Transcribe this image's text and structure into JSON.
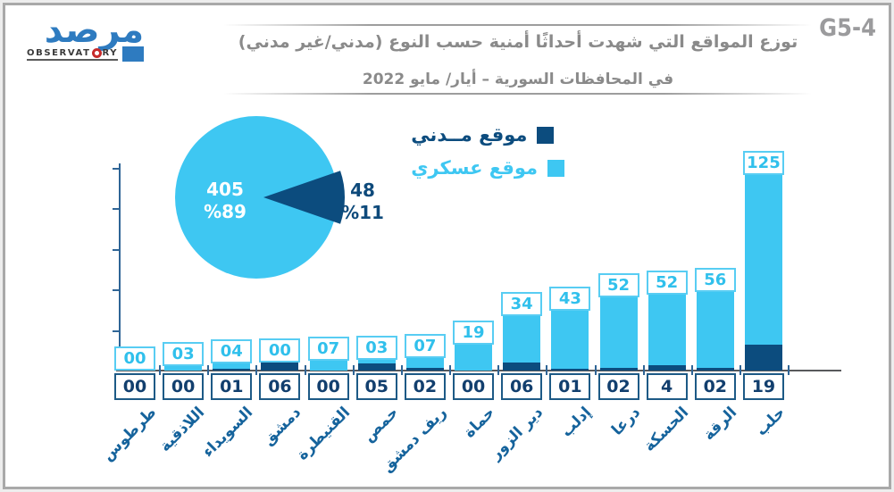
{
  "badge": "G5-4",
  "logo": {
    "arabic": "مرصد",
    "latin_left": "OBSERVAT",
    "latin_right": "RY"
  },
  "title": {
    "line1": "توزع المواقع التي شهدت أحداثًا أمنية حسب النوع (مدني/غير مدني)",
    "line2": "في المحافظات السورية – أيار/ مايو 2022"
  },
  "colors": {
    "military_light_blue": "#3EC7F2",
    "civilian_dark_blue": "#0C4C7E",
    "title_gray": "#8A8A8A",
    "category_label_blue": "#15639C"
  },
  "chart_data": [
    {
      "type": "pie",
      "labels": [
        "موقع مــدني",
        "موقع عسكري"
      ],
      "values": [
        48,
        405
      ],
      "display": {
        "civilian_value": "48",
        "civilian_pct": "%11",
        "military_value": "405",
        "military_pct": "%89"
      },
      "colors": [
        "#0C4C7E",
        "#3EC7F2"
      ],
      "legend_position": "right"
    },
    {
      "type": "bar",
      "stacked": true,
      "categories": [
        "طرطوس",
        "اللاذقية",
        "السويداء",
        "دمشق",
        "القنيطرة",
        "حمص",
        "ريف دمشق",
        "حماة",
        "دير الزور",
        "إدلب",
        "درعا",
        "الحسكة",
        "الرقة",
        "حلب"
      ],
      "series": [
        {
          "name": "موقع مدني",
          "color": "#0C4C7E",
          "values": [
            0,
            0,
            1,
            6,
            0,
            5,
            2,
            0,
            6,
            1,
            2,
            4,
            2,
            19
          ]
        },
        {
          "name": "موقع عسكري",
          "color": "#3EC7F2",
          "values": [
            0,
            3,
            4,
            0,
            7,
            3,
            7,
            19,
            34,
            43,
            52,
            52,
            56,
            125
          ]
        }
      ],
      "top_labels": [
        "00",
        "03",
        "04",
        "00",
        "07",
        "03",
        "07",
        "19",
        "34",
        "43",
        "52",
        "52",
        "56",
        "125"
      ],
      "bottom_labels": [
        "00",
        "00",
        "01",
        "06",
        "00",
        "05",
        "02",
        "00",
        "06",
        "01",
        "02",
        "4",
        "02",
        "19"
      ],
      "axis": {
        "y_gridlines": false,
        "y_tick_count": 5,
        "y_labels_visible": false
      }
    }
  ]
}
